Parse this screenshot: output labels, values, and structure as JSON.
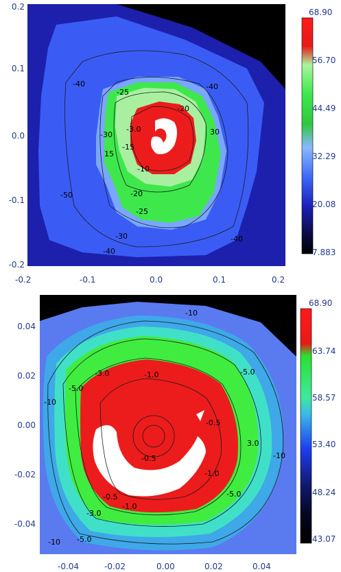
{
  "chart_data": [
    {
      "type": "heatmap",
      "title": "",
      "xlabel": "",
      "ylabel": "",
      "xlim": [
        -0.2,
        0.2
      ],
      "ylim": [
        -0.2,
        0.2
      ],
      "x_ticks": [
        "-0.2",
        "-0.1",
        "0.0",
        "0.1",
        "0.2"
      ],
      "y_ticks": [
        "0.2",
        "0.1",
        "0.0",
        "-0.1",
        "-0.2"
      ],
      "colorbar": {
        "min": 7.883,
        "max": 68.9,
        "tick_labels": [
          "68.90",
          "56.70",
          "44.49",
          "32.29",
          "20.08",
          "7.883"
        ]
      },
      "contour_labels": [
        "-40",
        "-40",
        "-25",
        "-20",
        "-30",
        "30",
        "-3.0",
        "-15",
        "-10",
        "15",
        "-20",
        "-25",
        "-30",
        "-40",
        "-40",
        "-50"
      ],
      "colors": {
        "background": "#000000",
        "outer": "#1c20ad",
        "mid_blue": "#3a5cf5",
        "light_blue": "#7aa6ff",
        "green": "#3ee84c",
        "light_green": "#a8f0a0",
        "red": "#ec1c1c",
        "core": "#ffffff"
      }
    },
    {
      "type": "heatmap",
      "title": "",
      "xlabel": "",
      "ylabel": "",
      "xlim": [
        -0.05,
        0.05
      ],
      "ylim": [
        -0.05,
        0.05
      ],
      "x_ticks": [
        "-0.04",
        "-0.02",
        "0.00",
        "0.02",
        "0.04"
      ],
      "y_ticks": [
        "0.04",
        "0.02",
        "0.00",
        "-0.02",
        "-0.04"
      ],
      "colorbar": {
        "min": 43.07,
        "max": 68.9,
        "tick_labels": [
          "68.90",
          "63.74",
          "58.57",
          "53.40",
          "48.24",
          "43.07"
        ]
      },
      "contour_labels": [
        "-10",
        "-3.0",
        "-1.0",
        "-5.0",
        "-10",
        "-5.0",
        "-0.5",
        "3.0",
        "-10",
        "-0.5",
        "-1.0",
        "-0.5",
        "-1.0",
        "-3.0",
        "-5.0",
        "-10",
        "-5.0"
      ],
      "colors": {
        "background": "#000000",
        "outer": "#5a7af0",
        "mid_blue": "#3ea8e8",
        "cyan": "#40e0c8",
        "green": "#40ec40",
        "red": "#ec1c1c",
        "core": "#ffffff"
      }
    }
  ]
}
